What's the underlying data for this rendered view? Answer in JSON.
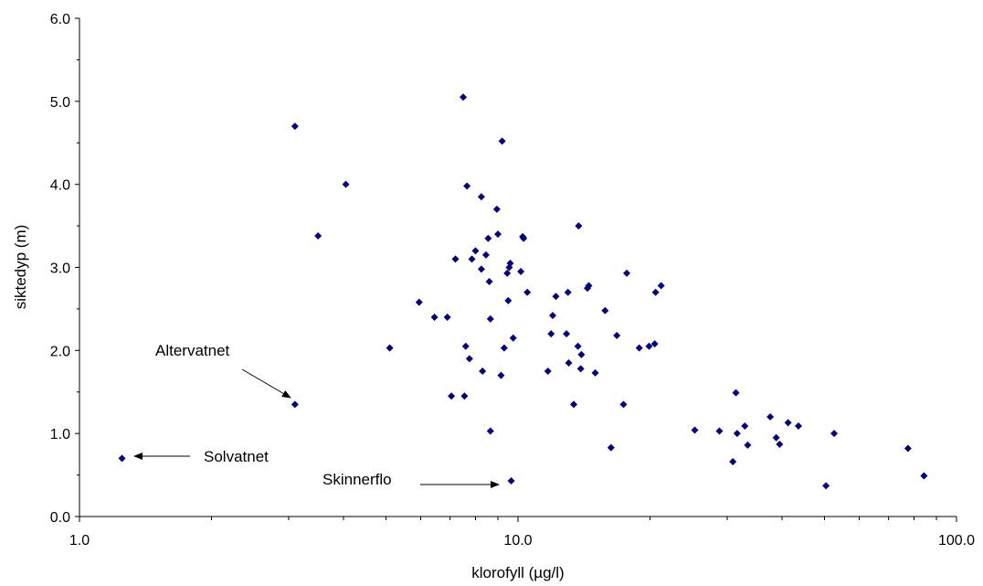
{
  "chart_data": {
    "type": "scatter",
    "xlabel": "klorofyll (µg/l)",
    "ylabel": "siktedyp (m)",
    "x_scale": "log",
    "xlim": [
      1.0,
      100.0
    ],
    "ylim": [
      0.0,
      6.0
    ],
    "x_ticks": [
      "1.0",
      "10.0",
      "100.0"
    ],
    "y_ticks": [
      "0.0",
      "1.0",
      "2.0",
      "3.0",
      "4.0",
      "5.0",
      "6.0"
    ],
    "grid": false,
    "legend": "none",
    "marker_color": "#000080",
    "series": [
      {
        "points": [
          [
            1.25,
            0.7
          ],
          [
            3.1,
            1.35
          ],
          [
            3.1,
            4.7
          ],
          [
            3.5,
            3.38
          ],
          [
            4.05,
            4.0
          ],
          [
            5.1,
            2.03
          ],
          [
            5.95,
            2.58
          ],
          [
            6.45,
            2.4
          ],
          [
            6.9,
            2.4
          ],
          [
            7.05,
            1.45
          ],
          [
            7.2,
            3.1
          ],
          [
            7.5,
            5.05
          ],
          [
            7.55,
            1.45
          ],
          [
            7.6,
            2.05
          ],
          [
            7.65,
            3.98
          ],
          [
            7.75,
            1.9
          ],
          [
            7.85,
            3.1
          ],
          [
            8.0,
            3.2
          ],
          [
            8.25,
            2.98
          ],
          [
            8.25,
            3.85
          ],
          [
            8.3,
            1.75
          ],
          [
            8.45,
            3.15
          ],
          [
            8.55,
            3.35
          ],
          [
            8.6,
            2.83
          ],
          [
            8.65,
            2.38
          ],
          [
            8.65,
            1.03
          ],
          [
            8.95,
            3.7
          ],
          [
            9.0,
            3.4
          ],
          [
            9.15,
            1.7
          ],
          [
            9.2,
            4.52
          ],
          [
            9.3,
            2.03
          ],
          [
            9.45,
            2.93
          ],
          [
            9.5,
            2.6
          ],
          [
            9.55,
            3.0
          ],
          [
            9.6,
            3.05
          ],
          [
            9.65,
            0.43
          ],
          [
            9.75,
            2.15
          ],
          [
            10.15,
            2.95
          ],
          [
            10.25,
            3.37
          ],
          [
            10.3,
            3.35
          ],
          [
            10.5,
            2.7
          ],
          [
            11.7,
            1.75
          ],
          [
            11.9,
            2.2
          ],
          [
            12.0,
            2.42
          ],
          [
            12.2,
            2.65
          ],
          [
            12.9,
            2.2
          ],
          [
            13.0,
            2.7
          ],
          [
            13.05,
            1.85
          ],
          [
            13.4,
            1.35
          ],
          [
            13.7,
            2.05
          ],
          [
            13.75,
            3.5
          ],
          [
            13.9,
            1.78
          ],
          [
            13.95,
            1.95
          ],
          [
            14.4,
            2.75
          ],
          [
            14.5,
            2.78
          ],
          [
            15.0,
            1.73
          ],
          [
            15.8,
            2.48
          ],
          [
            16.3,
            0.83
          ],
          [
            16.8,
            2.18
          ],
          [
            17.4,
            1.35
          ],
          [
            17.7,
            2.93
          ],
          [
            18.9,
            2.03
          ],
          [
            19.9,
            2.05
          ],
          [
            20.5,
            2.08
          ],
          [
            20.6,
            2.7
          ],
          [
            21.2,
            2.78
          ],
          [
            25.3,
            1.04
          ],
          [
            28.8,
            1.03
          ],
          [
            30.9,
            0.66
          ],
          [
            31.4,
            1.49
          ],
          [
            31.6,
            1.0
          ],
          [
            32.9,
            1.09
          ],
          [
            33.4,
            0.86
          ],
          [
            37.6,
            1.2
          ],
          [
            38.8,
            0.95
          ],
          [
            39.5,
            0.87
          ],
          [
            41.3,
            1.13
          ],
          [
            43.6,
            1.09
          ],
          [
            50.4,
            0.37
          ],
          [
            52.6,
            1.0
          ],
          [
            77.5,
            0.82
          ],
          [
            84.3,
            0.49
          ]
        ]
      }
    ],
    "annotations": [
      "Altervatnet",
      "Solvatnet",
      "Skinnerflo"
    ]
  }
}
